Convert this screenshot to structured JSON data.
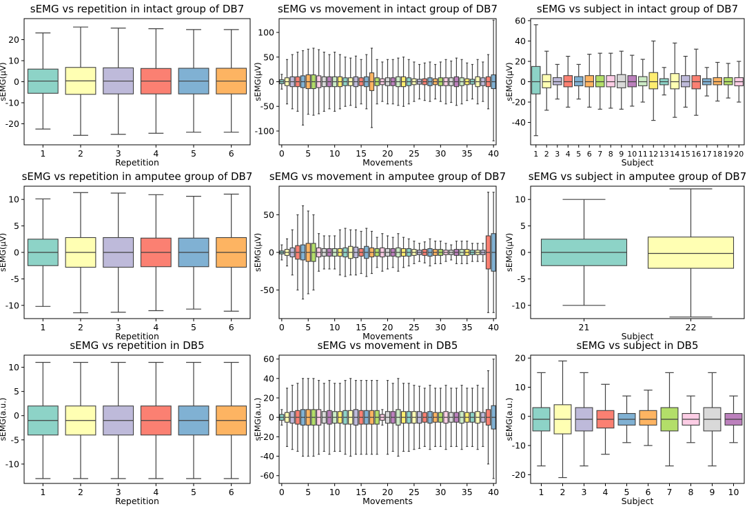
{
  "figure": {
    "palette": [
      "#8dd3c7",
      "#ffffb3",
      "#bebada",
      "#fb8072",
      "#80b1d3",
      "#fdb462",
      "#b3de69",
      "#fccde5",
      "#d9d9d9",
      "#bc80bd",
      "#ccebc5",
      "#ffed6f"
    ],
    "whisker_color": "#404040"
  },
  "chart_data": [
    {
      "id": "rep_intact_db7",
      "type": "box",
      "title": "sEMG vs repetition in intact group of DB7",
      "xlabel": "Repetition",
      "ylabel": "sEMG(μV)",
      "ylim": [
        -30,
        30
      ],
      "yticks": [
        -20,
        -10,
        0,
        10,
        20
      ],
      "xtick_labels": [
        "1",
        "2",
        "3",
        "4",
        "5",
        "6"
      ],
      "xtick_positions": [
        0,
        1,
        2,
        3,
        4,
        5
      ],
      "boxes": [
        {
          "label": "1",
          "q1": -5.5,
          "median": 0.3,
          "q3": 6.0,
          "wlo": -22.5,
          "whi": 23.2
        },
        {
          "label": "2",
          "q1": -6.0,
          "median": 0.4,
          "q3": 6.8,
          "wlo": -25.5,
          "whi": 26.0
        },
        {
          "label": "3",
          "q1": -5.8,
          "median": 0.3,
          "q3": 6.6,
          "wlo": -25.0,
          "whi": 25.5
        },
        {
          "label": "4",
          "q1": -5.8,
          "median": 0.3,
          "q3": 6.3,
          "wlo": -24.5,
          "whi": 25.2
        },
        {
          "label": "5",
          "q1": -5.8,
          "median": 0.3,
          "q3": 6.4,
          "wlo": -24.0,
          "whi": 24.8
        },
        {
          "label": "6",
          "q1": -5.8,
          "median": 0.3,
          "q3": 6.4,
          "wlo": -24.0,
          "whi": 24.8
        }
      ]
    },
    {
      "id": "mov_intact_db7",
      "type": "box",
      "title": "sEMG vs movement in intact group of DB7",
      "xlabel": "Movements",
      "ylabel": "sEMG(μV)",
      "ylim": [
        -128,
        128
      ],
      "yticks": [
        -100,
        -50,
        0,
        50,
        100
      ],
      "xtick_labels": [
        "0",
        "5",
        "10",
        "15",
        "20",
        "25",
        "30",
        "35",
        "40"
      ],
      "xtick_positions": [
        0,
        5,
        10,
        15,
        20,
        25,
        30,
        35,
        40
      ],
      "generated": {
        "count": 41,
        "box_halves": [
          4,
          8,
          10,
          10,
          12,
          14,
          14,
          12,
          10,
          10,
          10,
          10,
          8,
          8,
          10,
          8,
          10,
          18,
          8,
          6,
          8,
          8,
          10,
          10,
          8,
          6,
          5,
          6,
          8,
          6,
          8,
          8,
          8,
          10,
          8,
          6,
          5,
          10,
          8,
          10,
          14
        ],
        "whisker_halves": [
          15,
          45,
          55,
          60,
          63,
          66,
          68,
          65,
          60,
          55,
          60,
          55,
          50,
          48,
          52,
          45,
          55,
          80,
          45,
          40,
          45,
          45,
          48,
          50,
          45,
          40,
          35,
          38,
          40,
          35,
          40,
          45,
          42,
          48,
          45,
          38,
          35,
          45,
          40,
          55,
          110
        ],
        "whisker_hi_override": {
          "40": 125,
          "17": 68
        },
        "whisker_lo_override": {
          "40": -120,
          "4": -88,
          "17": -93
        }
      }
    },
    {
      "id": "sub_intact_db7",
      "type": "box",
      "title": "sEMG vs subject in intact group of DB7",
      "xlabel": "Subject",
      "ylabel": "sEMG(μV)",
      "ylim": [
        -62,
        62
      ],
      "yticks": [
        -40,
        -20,
        0,
        20,
        40,
        60
      ],
      "xtick_labels": [
        "1",
        "2",
        "3",
        "4",
        "5",
        "6",
        "7",
        "8",
        "9",
        "10",
        "11",
        "12",
        "13",
        "14",
        "15",
        "16",
        "17",
        "18",
        "19",
        "20"
      ],
      "xtick_positions": [
        0,
        1,
        2,
        3,
        4,
        5,
        6,
        7,
        8,
        9,
        10,
        11,
        12,
        13,
        14,
        15,
        16,
        17,
        18,
        19
      ],
      "boxes": [
        {
          "label": "1",
          "q1": -12,
          "median": 0,
          "q3": 15,
          "wlo": -53,
          "whi": 56
        },
        {
          "label": "2",
          "q1": -6,
          "median": 0,
          "q3": 7,
          "wlo": -28,
          "whi": 30
        },
        {
          "label": "3",
          "q1": -3,
          "median": 0,
          "q3": 4,
          "wlo": -17,
          "whi": 17
        },
        {
          "label": "4",
          "q1": -5,
          "median": 0,
          "q3": 6,
          "wlo": -25,
          "whi": 25
        },
        {
          "label": "5",
          "q1": -4,
          "median": 0,
          "q3": 5,
          "wlo": -17,
          "whi": 17
        },
        {
          "label": "6",
          "q1": -5,
          "median": 0,
          "q3": 6,
          "wlo": -25,
          "whi": 27
        },
        {
          "label": "7",
          "q1": -5,
          "median": 0,
          "q3": 6,
          "wlo": -27,
          "whi": 28
        },
        {
          "label": "8",
          "q1": -5,
          "median": 0,
          "q3": 6,
          "wlo": -26,
          "whi": 28
        },
        {
          "label": "9",
          "q1": -6,
          "median": 0,
          "q3": 7,
          "wlo": -27,
          "whi": 30
        },
        {
          "label": "10",
          "q1": -5,
          "median": 0,
          "q3": 6,
          "wlo": -24,
          "whi": 26
        },
        {
          "label": "11",
          "q1": -4,
          "median": 0,
          "q3": 5,
          "wlo": -20,
          "whi": 22
        },
        {
          "label": "12",
          "q1": -7,
          "median": 0,
          "q3": 9,
          "wlo": -38,
          "whi": 40
        },
        {
          "label": "13",
          "q1": -3,
          "median": 0,
          "q3": 3,
          "wlo": -13,
          "whi": 14
        },
        {
          "label": "14",
          "q1": -7,
          "median": 0,
          "q3": 8,
          "wlo": -35,
          "whi": 38
        },
        {
          "label": "15",
          "q1": -5,
          "median": 0,
          "q3": 6,
          "wlo": -25,
          "whi": 25
        },
        {
          "label": "16",
          "q1": -7,
          "median": 0,
          "q3": 6,
          "wlo": -33,
          "whi": 32
        },
        {
          "label": "17",
          "q1": -3,
          "median": 0,
          "q3": 3,
          "wlo": -14,
          "whi": 14
        },
        {
          "label": "18",
          "q1": -3,
          "median": 0,
          "q3": 4,
          "wlo": -19,
          "whi": 19
        },
        {
          "label": "19",
          "q1": -3,
          "median": 0,
          "q3": 4,
          "wlo": -16,
          "whi": 18
        },
        {
          "label": "20",
          "q1": -4,
          "median": 0,
          "q3": 4,
          "wlo": -20,
          "whi": 20
        }
      ]
    },
    {
      "id": "rep_amputee_db7",
      "type": "box",
      "title": "sEMG vs repetition in amputee group of DB7",
      "xlabel": "Repetition",
      "ylabel": "sEMG(μV)",
      "ylim": [
        -12.5,
        12.5
      ],
      "yticks": [
        -10,
        -5,
        0,
        5,
        10
      ],
      "xtick_labels": [
        "1",
        "2",
        "3",
        "4",
        "5",
        "6"
      ],
      "xtick_positions": [
        0,
        1,
        2,
        3,
        4,
        5
      ],
      "boxes": [
        {
          "label": "1",
          "q1": -2.5,
          "median": 0,
          "q3": 2.5,
          "wlo": -10.2,
          "whi": 10.1
        },
        {
          "label": "2",
          "q1": -2.8,
          "median": 0,
          "q3": 2.8,
          "wlo": -11.4,
          "whi": 11.3
        },
        {
          "label": "3",
          "q1": -2.8,
          "median": 0,
          "q3": 2.8,
          "wlo": -11.3,
          "whi": 11.2
        },
        {
          "label": "4",
          "q1": -2.7,
          "median": 0,
          "q3": 2.7,
          "wlo": -11.0,
          "whi": 10.9
        },
        {
          "label": "5",
          "q1": -2.7,
          "median": 0,
          "q3": 2.7,
          "wlo": -10.7,
          "whi": 10.6
        },
        {
          "label": "6",
          "q1": -2.8,
          "median": 0,
          "q3": 2.8,
          "wlo": -11.1,
          "whi": 11.0
        }
      ]
    },
    {
      "id": "mov_amputee_db7",
      "type": "box",
      "title": "sEMG vs movement in amputee group of DB7",
      "xlabel": "Movements",
      "ylabel": "sEMG(μV)",
      "ylim": [
        -88,
        88
      ],
      "yticks": [
        -50,
        0,
        50
      ],
      "xtick_labels": [
        "0",
        "5",
        "10",
        "15",
        "20",
        "25",
        "30",
        "35",
        "40"
      ],
      "xtick_positions": [
        0,
        5,
        10,
        15,
        20,
        25,
        30,
        35,
        40
      ],
      "generated": {
        "count": 41,
        "box_halves": [
          2,
          4,
          6,
          9,
          10,
          12,
          12,
          6,
          5,
          5,
          5,
          5,
          6,
          8,
          7,
          5,
          8,
          6,
          5,
          6,
          5,
          5,
          6,
          5,
          5,
          4,
          3,
          4,
          5,
          4,
          4,
          3,
          3,
          4,
          4,
          4,
          3,
          3,
          3,
          22,
          25
        ],
        "whisker_halves": [
          10,
          18,
          30,
          50,
          62,
          55,
          50,
          25,
          22,
          22,
          22,
          30,
          32,
          30,
          30,
          28,
          32,
          28,
          20,
          25,
          22,
          20,
          25,
          20,
          18,
          15,
          12,
          14,
          18,
          15,
          15,
          12,
          10,
          15,
          15,
          15,
          12,
          12,
          12,
          80,
          80
        ],
        "whisker_hi_override": {},
        "whisker_lo_override": {}
      }
    },
    {
      "id": "sub_amputee_db7",
      "type": "box",
      "title": "sEMG vs subject in amputee group of DB7",
      "xlabel": "Subject",
      "ylabel": "sEMG(μV)",
      "ylim": [
        -12.5,
        12.5
      ],
      "yticks": [
        -10,
        -5,
        0,
        5,
        10
      ],
      "xtick_labels": [
        "21",
        "22"
      ],
      "xtick_positions": [
        0,
        1
      ],
      "boxes": [
        {
          "label": "21",
          "q1": -2.5,
          "median": 0,
          "q3": 2.5,
          "wlo": -10,
          "whi": 10
        },
        {
          "label": "22",
          "q1": -3,
          "median": -0.2,
          "q3": 2.9,
          "wlo": -12.2,
          "whi": 12
        }
      ]
    },
    {
      "id": "rep_db5",
      "type": "box",
      "title": "sEMG vs repetition in DB5",
      "xlabel": "Repetition",
      "ylabel": "sEMG(a.u.)",
      "ylim": [
        -14,
        12.5
      ],
      "yticks": [
        -10,
        -5,
        0,
        5,
        10
      ],
      "xtick_labels": [
        "1",
        "2",
        "3",
        "4",
        "5",
        "6"
      ],
      "xtick_positions": [
        0,
        1,
        2,
        3,
        4,
        5
      ],
      "boxes": [
        {
          "label": "1",
          "q1": -4,
          "median": -1,
          "q3": 2,
          "wlo": -13,
          "whi": 11
        },
        {
          "label": "2",
          "q1": -4,
          "median": -1,
          "q3": 2,
          "wlo": -13,
          "whi": 11
        },
        {
          "label": "3",
          "q1": -4,
          "median": -1,
          "q3": 2,
          "wlo": -13,
          "whi": 11
        },
        {
          "label": "4",
          "q1": -4,
          "median": -1,
          "q3": 2,
          "wlo": -13,
          "whi": 11
        },
        {
          "label": "5",
          "q1": -4,
          "median": -1,
          "q3": 2,
          "wlo": -13,
          "whi": 11
        },
        {
          "label": "6",
          "q1": -4,
          "median": -1,
          "q3": 2,
          "wlo": -13,
          "whi": 11
        }
      ]
    },
    {
      "id": "mov_db5",
      "type": "box",
      "title": "sEMG vs movement in DB5",
      "xlabel": "Movements",
      "ylabel": "sEMG(a.u.)",
      "ylim": [
        -68,
        64
      ],
      "yticks": [
        -60,
        -40,
        -20,
        0,
        20,
        40,
        60
      ],
      "xtick_labels": [
        "0",
        "5",
        "10",
        "15",
        "20",
        "25",
        "30",
        "35",
        "40"
      ],
      "xtick_positions": [
        0,
        5,
        10,
        15,
        20,
        25,
        30,
        35,
        40
      ],
      "generated": {
        "count": 41,
        "box_halves": [
          3,
          5,
          6,
          7,
          8,
          8,
          8,
          8,
          6,
          7,
          6,
          6,
          7,
          7,
          8,
          7,
          7,
          7,
          7,
          3,
          6,
          6,
          8,
          6,
          6,
          6,
          6,
          5,
          6,
          5,
          5,
          6,
          5,
          5,
          6,
          5,
          5,
          6,
          5,
          8,
          12
        ],
        "whisker_halves": [
          8,
          30,
          33,
          35,
          40,
          40,
          40,
          38,
          35,
          38,
          35,
          35,
          38,
          40,
          38,
          38,
          38,
          38,
          38,
          8,
          38,
          35,
          40,
          35,
          35,
          33,
          32,
          30,
          33,
          30,
          30,
          33,
          30,
          30,
          33,
          30,
          30,
          33,
          30,
          45,
          55
        ],
        "whisker_hi_override": {
          "40": 60,
          "39": 48
        },
        "whisker_lo_override": {
          "40": -63,
          "39": -48
        }
      }
    },
    {
      "id": "sub_db5",
      "type": "box",
      "title": "sEMG vs subject in DB5",
      "xlabel": "Subject",
      "ylabel": "sEMG(a.u.)",
      "ylim": [
        -23,
        21
      ],
      "yticks": [
        -20,
        -10,
        0,
        10,
        20
      ],
      "xtick_labels": [
        "1",
        "2",
        "3",
        "4",
        "5",
        "6",
        "7",
        "8",
        "9",
        "10"
      ],
      "xtick_positions": [
        0,
        1,
        2,
        3,
        4,
        5,
        6,
        7,
        8,
        9
      ],
      "boxes": [
        {
          "label": "1",
          "q1": -5,
          "median": -1,
          "q3": 3,
          "wlo": -17,
          "whi": 15
        },
        {
          "label": "2",
          "q1": -6,
          "median": -1,
          "q3": 4,
          "wlo": -21,
          "whi": 19
        },
        {
          "label": "3",
          "q1": -5,
          "median": -1,
          "q3": 3,
          "wlo": -17,
          "whi": 15
        },
        {
          "label": "4",
          "q1": -4,
          "median": -1,
          "q3": 2,
          "wlo": -13,
          "whi": 11
        },
        {
          "label": "5",
          "q1": -3,
          "median": -1,
          "q3": 1,
          "wlo": -9,
          "whi": 7
        },
        {
          "label": "6",
          "q1": -3,
          "median": -1,
          "q3": 2,
          "wlo": -10,
          "whi": 9
        },
        {
          "label": "7",
          "q1": -5,
          "median": -1,
          "q3": 3,
          "wlo": -17,
          "whi": 15
        },
        {
          "label": "8",
          "q1": -3,
          "median": -1,
          "q3": 1,
          "wlo": -9,
          "whi": 7
        },
        {
          "label": "9",
          "q1": -5,
          "median": -1,
          "q3": 3,
          "wlo": -17,
          "whi": 15
        },
        {
          "label": "10",
          "q1": -3,
          "median": -1,
          "q3": 1,
          "wlo": -9,
          "whi": 7
        }
      ]
    }
  ]
}
